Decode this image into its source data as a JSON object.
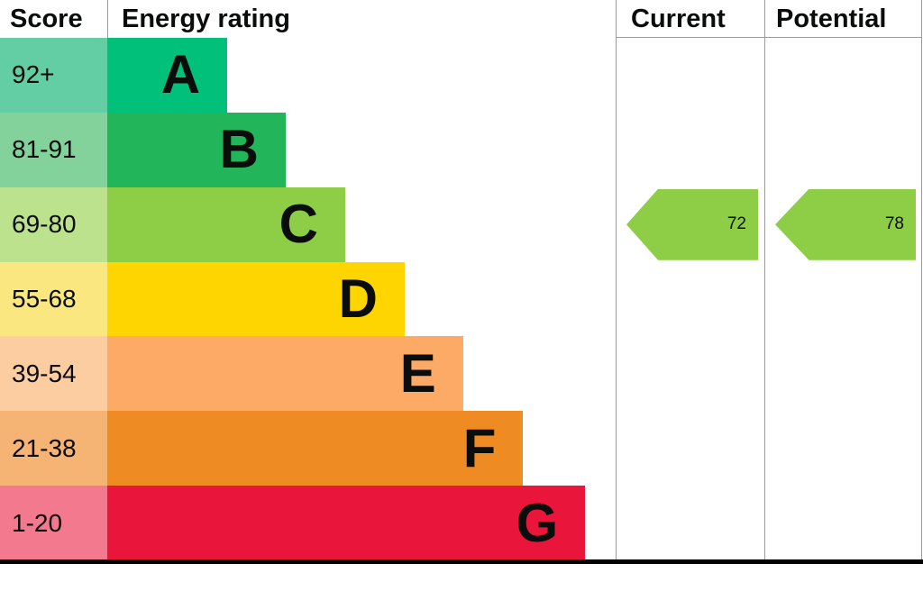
{
  "header": {
    "score": "Score",
    "energy_rating": "Energy rating",
    "current": "Current",
    "potential": "Potential"
  },
  "bands": [
    {
      "score_range": "92+",
      "letter": "A",
      "bar_color": "#00c07a",
      "score_color": "#63cda3",
      "width_pct": 23.6
    },
    {
      "score_range": "81-91",
      "letter": "B",
      "bar_color": "#23b559",
      "score_color": "#84d29b",
      "width_pct": 35.1
    },
    {
      "score_range": "69-80",
      "letter": "C",
      "bar_color": "#8dce46",
      "score_color": "#bce28e",
      "width_pct": 46.8
    },
    {
      "score_range": "55-68",
      "letter": "D",
      "bar_color": "#ffd500",
      "score_color": "#fae77f",
      "width_pct": 58.5
    },
    {
      "score_range": "39-54",
      "letter": "E",
      "bar_color": "#fcaa65",
      "score_color": "#fdcda2",
      "width_pct": 70.0
    },
    {
      "score_range": "21-38",
      "letter": "F",
      "bar_color": "#ef8b23",
      "score_color": "#f5b474",
      "width_pct": 81.8
    },
    {
      "score_range": "1-20",
      "letter": "G",
      "bar_color": "#e9153b",
      "score_color": "#f2798e",
      "width_pct": 94.0
    }
  ],
  "current": {
    "value": "72",
    "band_index": 2,
    "arrow_color": "#8dce46"
  },
  "potential": {
    "value": "78",
    "band_index": 2,
    "arrow_color": "#8dce46"
  },
  "chart_data": {
    "type": "bar",
    "title": "Energy rating",
    "categories": [
      "A",
      "B",
      "C",
      "D",
      "E",
      "F",
      "G"
    ],
    "score_ranges": [
      "92+",
      "81-91",
      "69-80",
      "55-68",
      "39-54",
      "21-38",
      "1-20"
    ],
    "columns": [
      "Score",
      "Energy rating",
      "Current",
      "Potential"
    ],
    "current_rating": 72,
    "current_band": "C",
    "potential_rating": 78,
    "potential_band": "C",
    "band_colors": [
      "#00c07a",
      "#23b559",
      "#8dce46",
      "#ffd500",
      "#fcaa65",
      "#ef8b23",
      "#e9153b"
    ],
    "legend_position": "none",
    "grid": false
  }
}
